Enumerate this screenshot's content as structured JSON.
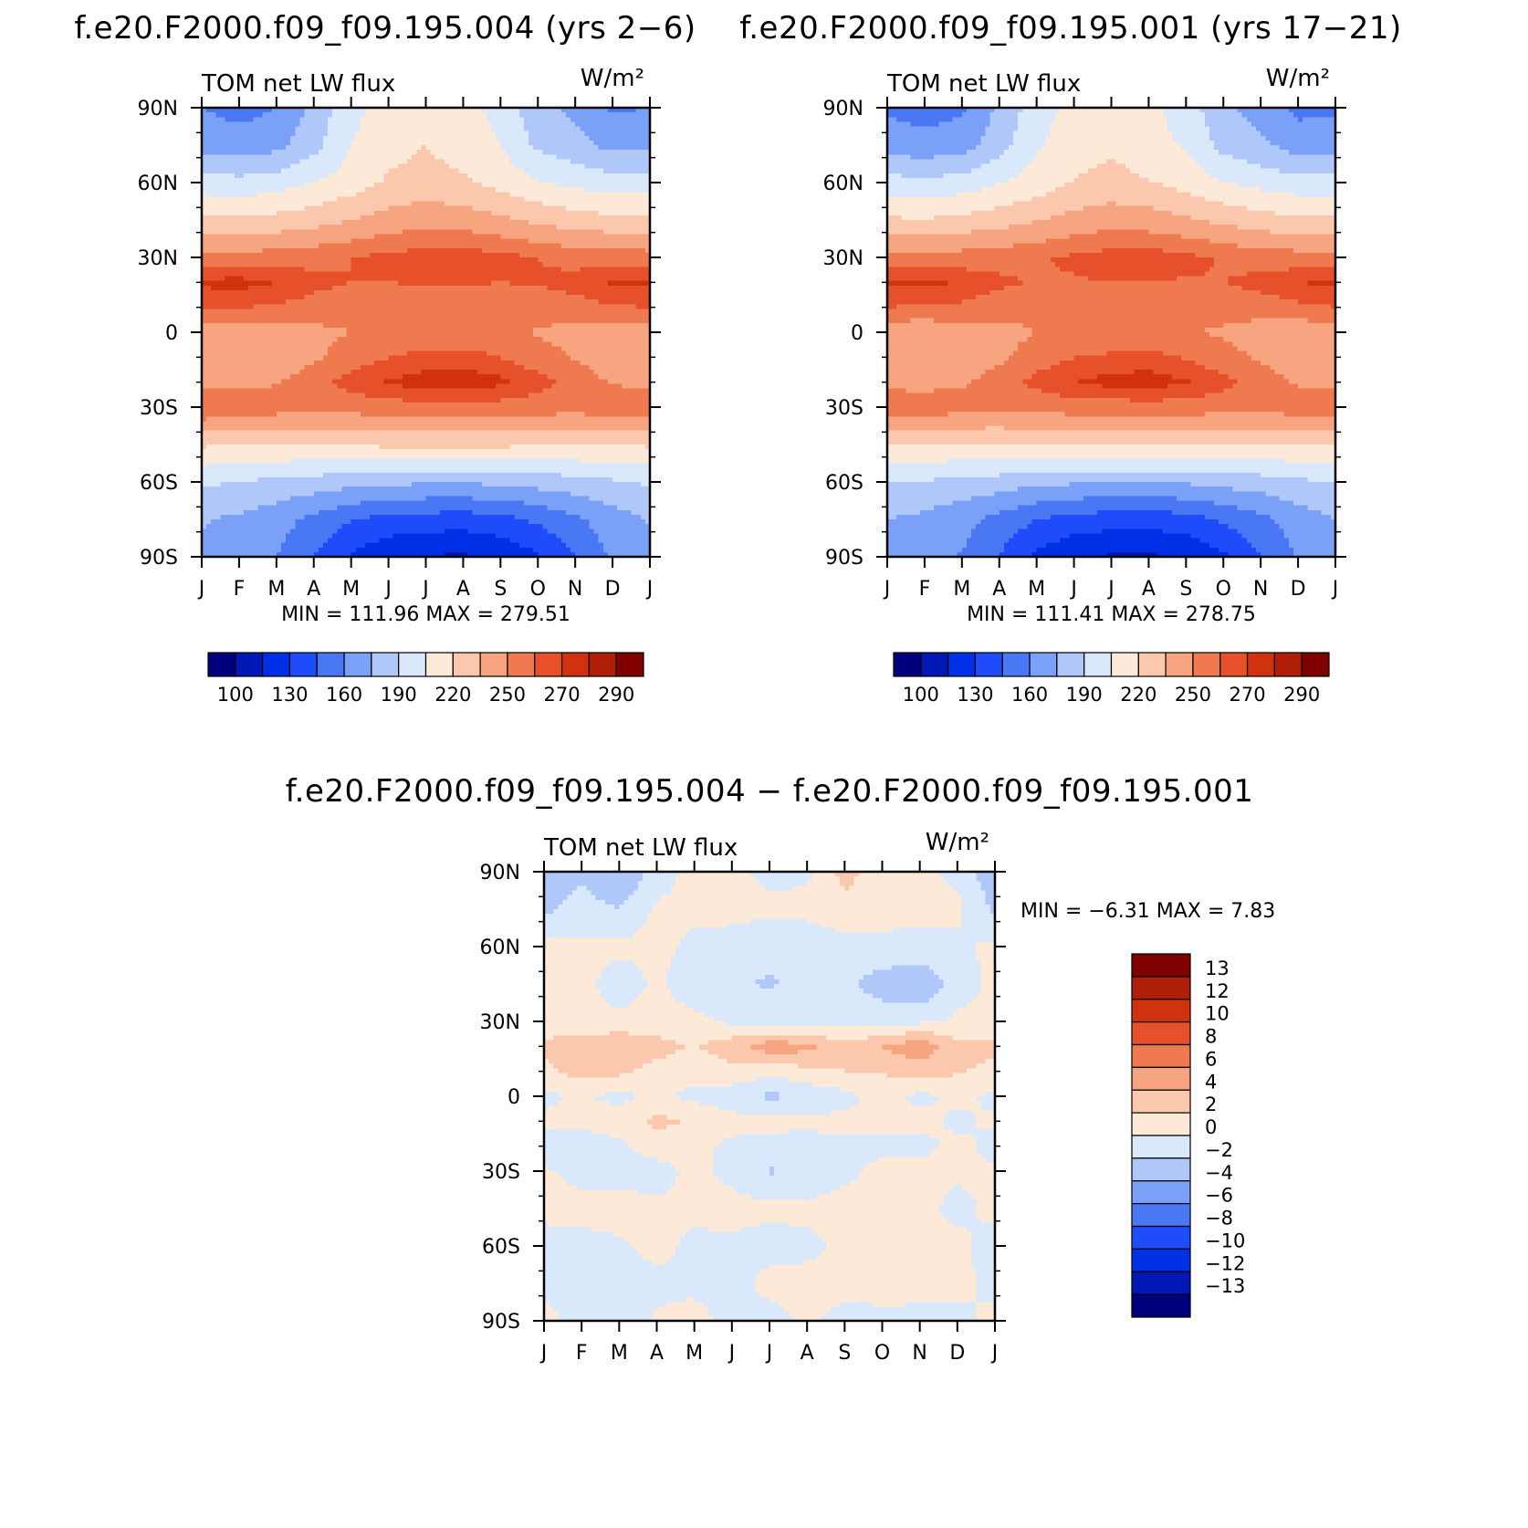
{
  "figure": {
    "titles": [
      "f.e20.F2000.f09_f09.195.004 (yrs 2−6)",
      "f.e20.F2000.f09_f09.195.001 (yrs 17−21)",
      "f.e20.F2000.f09_f09.195.004 − f.e20.F2000.f09_f09.195.001"
    ]
  },
  "chart_data": [
    {
      "type": "heatmap",
      "title": "f.e20.F2000.f09_f09.195.004 (yrs 2−6)",
      "variable_label": "TOM net LW flux",
      "units_label": "W/m²",
      "xlabel": "",
      "ylabel": "",
      "x_ticklabels": [
        "J",
        "F",
        "M",
        "A",
        "M",
        "J",
        "J",
        "A",
        "S",
        "O",
        "N",
        "D",
        "J"
      ],
      "y_ticklabels": [
        "90S",
        "60S",
        "30S",
        "0",
        "30N",
        "60N",
        "90N"
      ],
      "y_ticks": [
        -90,
        -60,
        -30,
        0,
        30,
        60,
        90
      ],
      "xlim": [
        0,
        12
      ],
      "ylim": [
        -90,
        90
      ],
      "stats_text": "MIN = 111.96 MAX = 279.51",
      "min": 111.96,
      "max": 279.51,
      "colorbar": {
        "orientation": "horizontal",
        "levels": [
          100,
          115,
          130,
          145,
          160,
          175,
          190,
          205,
          220,
          235,
          250,
          262,
          270,
          280,
          290
        ],
        "labels": [
          "100",
          "130",
          "160",
          "190",
          "220",
          "250",
          "270",
          "290"
        ],
        "colors": [
          "#00007f",
          "#0018b4",
          "#0030e6",
          "#1e4cfa",
          "#4a78f5",
          "#7aa0f8",
          "#afc8f9",
          "#d9e8fb",
          "#fde9d8",
          "#fbc8ad",
          "#f7a480",
          "#f07a50",
          "#e6502a",
          "#d03210",
          "#b01e08",
          "#800000"
        ]
      },
      "lat_profiles_deg": [
        -90,
        -75,
        -60,
        -45,
        -30,
        -20,
        -10,
        0,
        10,
        20,
        30,
        45,
        60,
        75,
        90
      ],
      "months": [
        "J",
        "F",
        "M",
        "A",
        "M",
        "J",
        "J",
        "A",
        "S",
        "O",
        "N",
        "D",
        "J"
      ],
      "values_by_month_lat": [
        [
          172,
          176,
          192,
          222,
          263,
          245,
          236,
          240,
          262,
          272,
          256,
          223,
          197,
          170,
          160
        ],
        [
          168,
          172,
          190,
          221,
          260,
          246,
          238,
          240,
          262,
          273,
          256,
          222,
          195,
          166,
          155
        ],
        [
          160,
          166,
          186,
          220,
          257,
          249,
          240,
          242,
          261,
          270,
          256,
          225,
          198,
          170,
          160
        ],
        [
          145,
          156,
          184,
          221,
          255,
          258,
          247,
          246,
          258,
          265,
          259,
          229,
          205,
          185,
          180
        ],
        [
          128,
          146,
          180,
          222,
          256,
          266,
          257,
          250,
          255,
          262,
          262,
          235,
          212,
          205,
          200
        ],
        [
          118,
          140,
          178,
          223,
          258,
          271,
          262,
          252,
          254,
          262,
          265,
          241,
          222,
          215,
          212
        ],
        [
          114,
          138,
          177,
          223,
          258,
          274,
          265,
          254,
          254,
          263,
          268,
          245,
          225,
          220,
          215
        ],
        [
          113,
          137,
          177,
          223,
          259,
          275,
          266,
          254,
          254,
          263,
          268,
          243,
          222,
          214,
          210
        ],
        [
          118,
          140,
          178,
          223,
          258,
          272,
          262,
          252,
          255,
          262,
          266,
          238,
          215,
          205,
          200
        ],
        [
          128,
          148,
          181,
          222,
          257,
          266,
          256,
          249,
          256,
          263,
          262,
          232,
          206,
          187,
          180
        ],
        [
          145,
          157,
          184,
          221,
          256,
          258,
          249,
          244,
          258,
          266,
          258,
          227,
          201,
          180,
          172
        ],
        [
          162,
          168,
          188,
          221,
          259,
          249,
          241,
          242,
          261,
          271,
          257,
          224,
          197,
          170,
          158
        ],
        [
          172,
          176,
          192,
          222,
          263,
          245,
          236,
          240,
          262,
          272,
          256,
          223,
          197,
          170,
          160
        ]
      ]
    },
    {
      "type": "heatmap",
      "title": "f.e20.F2000.f09_f09.195.001 (yrs 17−21)",
      "variable_label": "TOM net LW flux",
      "units_label": "W/m²",
      "xlabel": "",
      "ylabel": "",
      "x_ticklabels": [
        "J",
        "F",
        "M",
        "A",
        "M",
        "J",
        "J",
        "A",
        "S",
        "O",
        "N",
        "D",
        "J"
      ],
      "y_ticklabels": [
        "90S",
        "60S",
        "30S",
        "0",
        "30N",
        "60N",
        "90N"
      ],
      "y_ticks": [
        -90,
        -60,
        -30,
        0,
        30,
        60,
        90
      ],
      "xlim": [
        0,
        12
      ],
      "ylim": [
        -90,
        90
      ],
      "stats_text": "MIN = 111.41 MAX = 278.75",
      "min": 111.41,
      "max": 278.75,
      "colorbar": {
        "orientation": "horizontal",
        "levels": [
          100,
          115,
          130,
          145,
          160,
          175,
          190,
          205,
          220,
          235,
          250,
          262,
          270,
          280,
          290
        ],
        "labels": [
          "100",
          "130",
          "160",
          "190",
          "220",
          "250",
          "270",
          "290"
        ],
        "colors": [
          "#00007f",
          "#0018b4",
          "#0030e6",
          "#1e4cfa",
          "#4a78f5",
          "#7aa0f8",
          "#afc8f9",
          "#d9e8fb",
          "#fde9d8",
          "#fbc8ad",
          "#f7a480",
          "#f07a50",
          "#e6502a",
          "#d03210",
          "#b01e08",
          "#800000"
        ]
      },
      "lat_profiles_deg": [
        -90,
        -75,
        -60,
        -45,
        -30,
        -20,
        -10,
        0,
        10,
        20,
        30,
        45,
        60,
        75,
        90
      ],
      "months": [
        "J",
        "F",
        "M",
        "A",
        "M",
        "J",
        "J",
        "A",
        "S",
        "O",
        "N",
        "D",
        "J"
      ],
      "values_by_month_lat": [
        [
          171,
          175,
          191,
          221,
          262,
          244,
          236,
          240,
          262,
          271,
          255,
          222,
          196,
          168,
          158
        ],
        [
          167,
          171,
          189,
          220,
          259,
          245,
          238,
          240,
          261,
          272,
          255,
          221,
          194,
          165,
          154
        ],
        [
          159,
          165,
          185,
          219,
          256,
          248,
          240,
          242,
          260,
          269,
          256,
          224,
          197,
          168,
          158
        ],
        [
          144,
          155,
          183,
          220,
          254,
          257,
          247,
          245,
          257,
          264,
          258,
          228,
          204,
          183,
          178
        ],
        [
          127,
          145,
          179,
          221,
          255,
          265,
          257,
          250,
          254,
          261,
          261,
          234,
          211,
          203,
          198
        ],
        [
          117,
          139,
          177,
          222,
          257,
          270,
          262,
          252,
          253,
          261,
          264,
          240,
          221,
          213,
          210
        ],
        [
          113,
          137,
          176,
          222,
          257,
          273,
          264,
          253,
          253,
          262,
          267,
          244,
          224,
          218,
          213
        ],
        [
          112,
          136,
          176,
          222,
          258,
          274,
          265,
          254,
          253,
          262,
          268,
          242,
          221,
          212,
          208
        ],
        [
          117,
          139,
          177,
          222,
          257,
          271,
          261,
          251,
          254,
          261,
          265,
          237,
          214,
          203,
          198
        ],
        [
          127,
          147,
          180,
          221,
          256,
          265,
          255,
          248,
          255,
          262,
          261,
          231,
          205,
          185,
          178
        ],
        [
          144,
          156,
          183,
          220,
          255,
          257,
          248,
          243,
          257,
          265,
          257,
          226,
          200,
          178,
          170
        ],
        [
          161,
          167,
          187,
          220,
          258,
          248,
          240,
          241,
          260,
          270,
          256,
          223,
          196,
          168,
          156
        ],
        [
          171,
          175,
          191,
          221,
          262,
          244,
          236,
          240,
          262,
          271,
          255,
          222,
          196,
          168,
          158
        ]
      ]
    },
    {
      "type": "heatmap",
      "title": "f.e20.F2000.f09_f09.195.004 − f.e20.F2000.f09_f09.195.001",
      "variable_label": "TOM net LW flux",
      "units_label": "W/m²",
      "xlabel": "",
      "ylabel": "",
      "x_ticklabels": [
        "J",
        "F",
        "M",
        "A",
        "M",
        "J",
        "J",
        "A",
        "S",
        "O",
        "N",
        "D",
        "J"
      ],
      "y_ticklabels": [
        "90S",
        "60S",
        "30S",
        "0",
        "30N",
        "60N",
        "90N"
      ],
      "y_ticks": [
        -90,
        -60,
        -30,
        0,
        30,
        60,
        90
      ],
      "xlim": [
        0,
        12
      ],
      "ylim": [
        -90,
        90
      ],
      "stats_text": "MIN = −6.31 MAX = 7.83",
      "min": -6.31,
      "max": 7.83,
      "colorbar": {
        "orientation": "vertical",
        "levels": [
          -13,
          -12,
          -10,
          -8,
          -6,
          -4,
          -2,
          0,
          2,
          4,
          6,
          8,
          10,
          12,
          13
        ],
        "labels": [
          "13",
          "12",
          "10",
          "8",
          "6",
          "4",
          "2",
          "0",
          "−2",
          "−4",
          "−6",
          "−8",
          "−10",
          "−12",
          "−13"
        ],
        "colors": [
          "#00007f",
          "#0018b4",
          "#0030e6",
          "#1e4cfa",
          "#4a78f5",
          "#7aa0f8",
          "#afc8f9",
          "#d9e8fb",
          "#fde9d8",
          "#fbc8ad",
          "#f7a480",
          "#f07a50",
          "#e6502a",
          "#d03210",
          "#b01e08",
          "#800000"
        ]
      },
      "lat_profiles_deg": [
        -90,
        -75,
        -60,
        -45,
        -30,
        -20,
        -10,
        0,
        10,
        20,
        30,
        45,
        60,
        75,
        90
      ],
      "months": [
        "J",
        "F",
        "M",
        "A",
        "M",
        "J",
        "J",
        "A",
        "S",
        "O",
        "N",
        "D",
        "J"
      ],
      "values_by_month_lat": [
        [
          0.5,
          -0.5,
          -0.8,
          0.6,
          0.2,
          -0.6,
          0.4,
          -0.5,
          1.5,
          2.5,
          0.8,
          0.5,
          0.6,
          -2.5,
          -3.5
        ],
        [
          -0.6,
          -0.7,
          -0.5,
          0.5,
          -0.5,
          -1.2,
          0.6,
          0.3,
          2.8,
          3.2,
          0.5,
          0.8,
          0.4,
          -1.0,
          -2.5
        ],
        [
          -1.2,
          -0.8,
          -0.3,
          0.7,
          -0.6,
          -0.4,
          1.0,
          -0.6,
          2.5,
          3.8,
          0.6,
          -1.2,
          0.5,
          -2.0,
          -4.2
        ],
        [
          0.3,
          -0.5,
          0.6,
          0.4,
          -0.8,
          0.9,
          2.5,
          0.4,
          1.2,
          2.8,
          0.8,
          0.4,
          0.6,
          0.3,
          -1.0
        ],
        [
          0.6,
          -0.4,
          -0.5,
          0.5,
          0.5,
          0.6,
          1.8,
          -0.6,
          0.8,
          1.8,
          0.6,
          -1.4,
          -0.5,
          0.5,
          0.7
        ],
        [
          -0.5,
          -0.7,
          -0.4,
          0.7,
          -0.6,
          -0.5,
          0.8,
          -1.2,
          1.4,
          3.2,
          -0.5,
          -1.8,
          -0.8,
          0.6,
          0.4
        ],
        [
          -0.7,
          0.6,
          -0.8,
          0.5,
          -2.2,
          -0.6,
          0.5,
          -2.5,
          0.8,
          5.2,
          -0.9,
          -2.2,
          -1.6,
          0.5,
          -0.5
        ],
        [
          0.3,
          0.8,
          -0.6,
          0.6,
          -1.8,
          -0.7,
          0.4,
          -1.5,
          1.4,
          4.6,
          -1.2,
          -1.5,
          -1.4,
          0.6,
          -0.4
        ],
        [
          -0.6,
          0.5,
          0.6,
          0.8,
          -0.5,
          -0.4,
          0.5,
          -0.6,
          2.0,
          2.4,
          -0.6,
          -1.6,
          -0.6,
          1.2,
          2.8
        ],
        [
          -0.4,
          0.6,
          0.8,
          0.4,
          0.6,
          -0.6,
          0.4,
          0.7,
          2.2,
          4.0,
          -0.8,
          -3.0,
          -0.4,
          0.6,
          0.8
        ],
        [
          -0.5,
          0.6,
          0.4,
          0.6,
          0.5,
          -0.5,
          0.6,
          -0.5,
          2.8,
          5.5,
          -0.6,
          -3.8,
          -0.5,
          0.4,
          0.6
        ],
        [
          -0.4,
          0.4,
          0.6,
          -0.6,
          0.4,
          0.5,
          -0.4,
          0.6,
          2.2,
          2.6,
          0.4,
          -1.0,
          -0.5,
          0.6,
          -0.6
        ],
        [
          0.5,
          -0.5,
          -0.8,
          0.6,
          0.2,
          -0.6,
          0.4,
          -0.5,
          1.5,
          2.5,
          0.8,
          0.5,
          0.6,
          -2.5,
          -3.5
        ]
      ]
    }
  ]
}
